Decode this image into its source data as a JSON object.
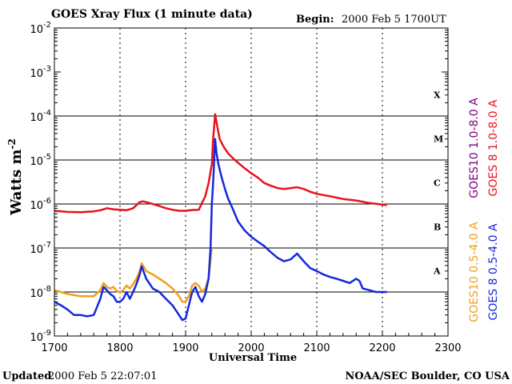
{
  "chart_data": {
    "type": "line",
    "title": "GOES Xray Flux (1 minute data)",
    "begin_label": "Begin:",
    "begin_value": "2000 Feb 5 1700UT",
    "xlabel": "Universal Time",
    "ylabel_base": "Watts m",
    "ylabel_exp": "-2",
    "xlim": [
      1700,
      2300
    ],
    "ylim": [
      1e-09,
      0.01
    ],
    "yscale": "log",
    "x_ticks": [
      "1700",
      "1800",
      "1900",
      "2000",
      "2100",
      "2200",
      "2300"
    ],
    "y_ticks": [
      {
        "base": "10",
        "exp": "-2"
      },
      {
        "base": "10",
        "exp": "-3"
      },
      {
        "base": "10",
        "exp": "-4"
      },
      {
        "base": "10",
        "exp": "-5"
      },
      {
        "base": "10",
        "exp": "-6"
      },
      {
        "base": "10",
        "exp": "-7"
      },
      {
        "base": "10",
        "exp": "-8"
      },
      {
        "base": "10",
        "exp": "-9"
      }
    ],
    "class_labels": [
      {
        "label": "X",
        "at": 0.0001
      },
      {
        "label": "M",
        "at": 1e-05
      },
      {
        "label": "C",
        "at": 1e-06
      },
      {
        "label": "B",
        "at": 1e-07
      },
      {
        "label": "A",
        "at": 1e-08
      }
    ],
    "flare_class_thresholds": [
      0.0001,
      1e-05,
      1e-06,
      1e-07,
      1e-08
    ],
    "series": [
      {
        "name": "GOES10 1.0-8.0 A",
        "color": "#800080",
        "x": [],
        "values": []
      },
      {
        "name": "GOES 8 1.0-8.0 A",
        "color": "#e8121c",
        "x": [
          1700,
          1720,
          1740,
          1760,
          1770,
          1780,
          1790,
          1800,
          1810,
          1820,
          1830,
          1835,
          1840,
          1850,
          1860,
          1870,
          1880,
          1890,
          1900,
          1910,
          1920,
          1930,
          1935,
          1940,
          1942,
          1945,
          1948,
          1952,
          1958,
          1965,
          1975,
          1990,
          2000,
          2010,
          2020,
          2030,
          2040,
          2050,
          2060,
          2070,
          2080,
          2090,
          2100,
          2120,
          2140,
          2160,
          2180,
          2200,
          2207
        ],
        "values": [
          7e-07,
          6.6e-07,
          6.5e-07,
          6.8e-07,
          7.2e-07,
          8e-07,
          7.6e-07,
          7.4e-07,
          7.2e-07,
          8e-07,
          1.1e-06,
          1.15e-06,
          1.1e-06,
          1e-06,
          9e-07,
          8e-07,
          7.4e-07,
          7e-07,
          7e-07,
          7.3e-07,
          7.4e-07,
          1.5e-06,
          3e-06,
          8e-06,
          3e-05,
          0.00011,
          6e-05,
          3e-05,
          2e-05,
          1.4e-05,
          1e-05,
          6.5e-06,
          5e-06,
          4e-06,
          3e-06,
          2.6e-06,
          2.3e-06,
          2.2e-06,
          2.3e-06,
          2.4e-06,
          2.2e-06,
          1.9e-06,
          1.7e-06,
          1.5e-06,
          1.3e-06,
          1.2e-06,
          1.05e-06,
          9.7e-07,
          9.5e-07
        ]
      },
      {
        "name": "GOES10 0.5-4.0 A",
        "color": "#f0a020",
        "x": [
          1700,
          1710,
          1720,
          1740,
          1760,
          1770,
          1775,
          1780,
          1785,
          1790,
          1795,
          1800,
          1805,
          1810,
          1815,
          1820,
          1825,
          1830,
          1833,
          1840,
          1850,
          1860,
          1870,
          1880,
          1890,
          1895,
          1900,
          1905,
          1910,
          1915,
          1920,
          1925,
          1930,
          1935,
          1940
        ],
        "values": [
          1.1e-08,
          1e-08,
          9e-09,
          8e-09,
          8e-09,
          1.1e-08,
          1.6e-08,
          1.3e-08,
          1.2e-08,
          1.3e-08,
          1.05e-08,
          1e-08,
          1.1e-08,
          1.4e-08,
          1.2e-08,
          1.5e-08,
          2e-08,
          3e-08,
          4.5e-08,
          3e-08,
          2.5e-08,
          2e-08,
          1.6e-08,
          1.2e-08,
          8e-09,
          6e-09,
          6e-09,
          8e-09,
          1.4e-08,
          1.6e-08,
          1.4e-08,
          1e-08,
          1.2e-08,
          2e-08,
          1e-07
        ]
      },
      {
        "name": "GOES 8 0.5-4.0 A",
        "color": "#1428dc",
        "x": [
          1700,
          1710,
          1720,
          1730,
          1740,
          1750,
          1760,
          1770,
          1775,
          1780,
          1785,
          1790,
          1795,
          1800,
          1805,
          1810,
          1815,
          1820,
          1825,
          1830,
          1833,
          1840,
          1850,
          1860,
          1870,
          1880,
          1890,
          1895,
          1900,
          1905,
          1910,
          1915,
          1920,
          1925,
          1930,
          1935,
          1938,
          1940,
          1942,
          1945,
          1947,
          1950,
          1955,
          1960,
          1965,
          1970,
          1975,
          1980,
          1990,
          2000,
          2010,
          2020,
          2030,
          2040,
          2050,
          2060,
          2070,
          2080,
          2090,
          2100,
          2110,
          2120,
          2130,
          2140,
          2150,
          2160,
          2165,
          2170,
          2180,
          2190,
          2200,
          2207
        ],
        "values": [
          6e-09,
          5e-09,
          4e-09,
          3e-09,
          3e-09,
          2.8e-09,
          3e-09,
          7e-09,
          1.3e-08,
          1.1e-08,
          9e-09,
          8e-09,
          6e-09,
          6e-09,
          7e-09,
          1e-08,
          7e-09,
          1e-08,
          1.5e-08,
          2.5e-08,
          3.8e-08,
          2e-08,
          1.2e-08,
          1e-08,
          7e-09,
          5e-09,
          3e-09,
          2.3e-09,
          2.5e-09,
          5e-09,
          1e-08,
          1.3e-08,
          8e-09,
          6e-09,
          9e-09,
          2e-08,
          1e-07,
          1e-06,
          3e-06,
          3e-05,
          1.5e-05,
          8e-06,
          4e-06,
          2.2e-06,
          1.3e-06,
          9e-07,
          6e-07,
          4e-07,
          2.5e-07,
          1.8e-07,
          1.4e-07,
          1.1e-07,
          8e-08,
          6e-08,
          5e-08,
          5.5e-08,
          7.5e-08,
          5e-08,
          3.5e-08,
          3e-08,
          2.5e-08,
          2.2e-08,
          2e-08,
          1.8e-08,
          1.6e-08,
          2e-08,
          1.8e-08,
          1.2e-08,
          1.1e-08,
          1e-08,
          1e-08,
          1e-08
        ]
      }
    ],
    "legend_placement": "right, vertical"
  },
  "footer": {
    "updated_label": "Updated",
    "updated_value": "2000 Feb  5 22:07:01",
    "source": "NOAA/SEC Boulder, CO USA"
  }
}
